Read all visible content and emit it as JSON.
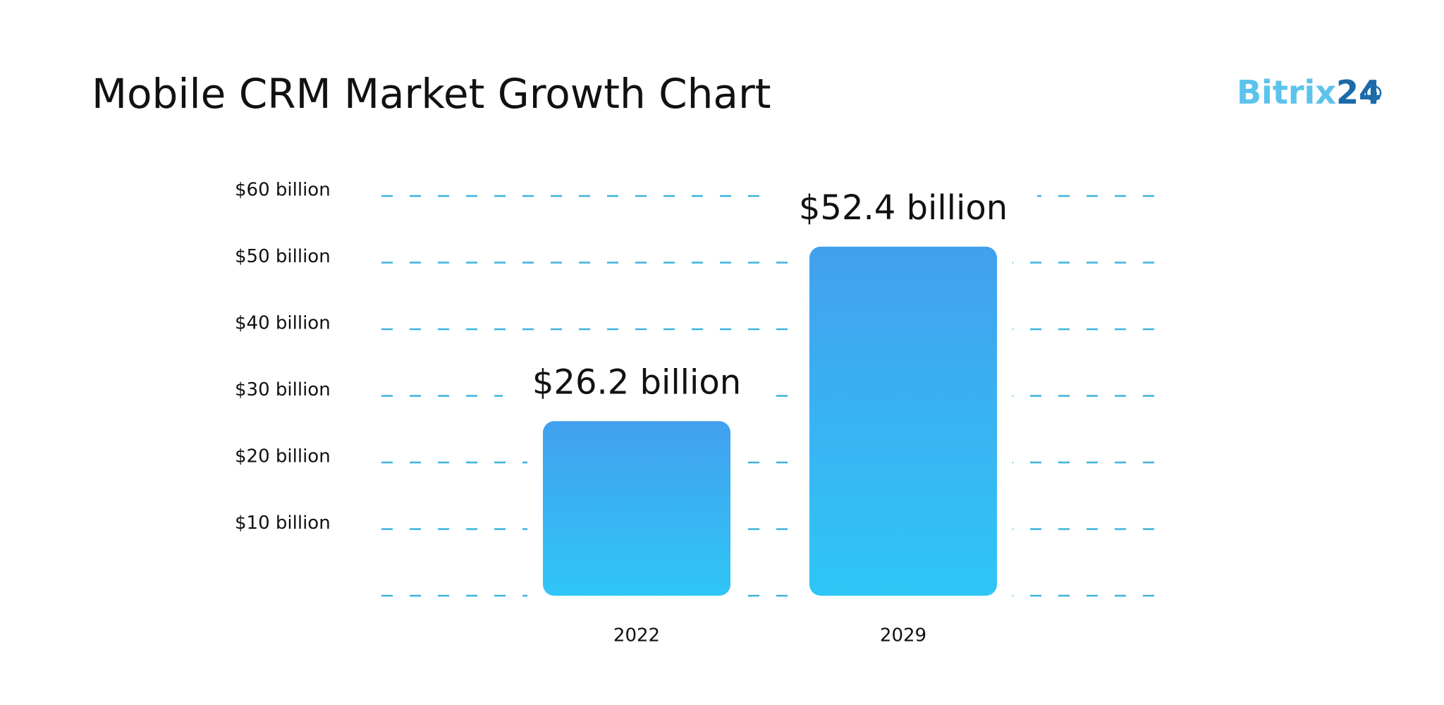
{
  "logo": [
    "Bitrix",
    "24"
  ],
  "chart_data": {
    "type": "bar",
    "title": "Mobile CRM Market Growth Chart",
    "categories": [
      "2022",
      "2029"
    ],
    "values": [
      26.2,
      52.4
    ],
    "value_labels": [
      "$26.2 billion",
      "$52.4 billion"
    ],
    "gradient": [
      "#42a0ee",
      "#2fc6f6"
    ],
    "grid_color": "#3bb4dc",
    "ylim": [
      0,
      60
    ],
    "yticks": [
      {
        "value": 10,
        "label": "$10 billion"
      },
      {
        "value": 20,
        "label": "$20 billion"
      },
      {
        "value": 30,
        "label": "$30 billion"
      },
      {
        "value": 40,
        "label": "$40 billion"
      },
      {
        "value": 50,
        "label": "$50 billion"
      },
      {
        "value": 60,
        "label": "$60 billion"
      }
    ],
    "grid": true
  }
}
